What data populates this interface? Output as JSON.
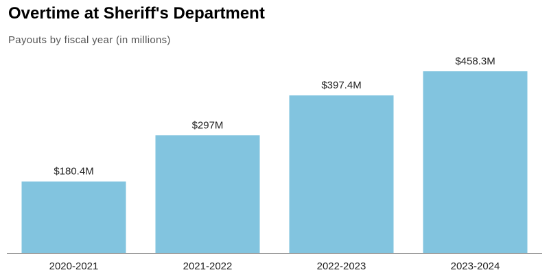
{
  "chart_data": {
    "type": "bar",
    "title": "Overtime at Sheriff's Department",
    "subtitle": "Payouts by fiscal year (in millions)",
    "xlabel": "",
    "ylabel": "",
    "categories": [
      "2020-2021",
      "2021-2022",
      "2022-2023",
      "2023-2024"
    ],
    "values": [
      180.4,
      297,
      397.4,
      458.3
    ],
    "value_labels": [
      "$180.4M",
      "$297M",
      "$397.4M",
      "$458.3M"
    ],
    "ylim": [
      0,
      458.3
    ],
    "grid": false,
    "legend": "none",
    "colors": {
      "bar": "#82c4df",
      "axis": "#777777"
    }
  }
}
